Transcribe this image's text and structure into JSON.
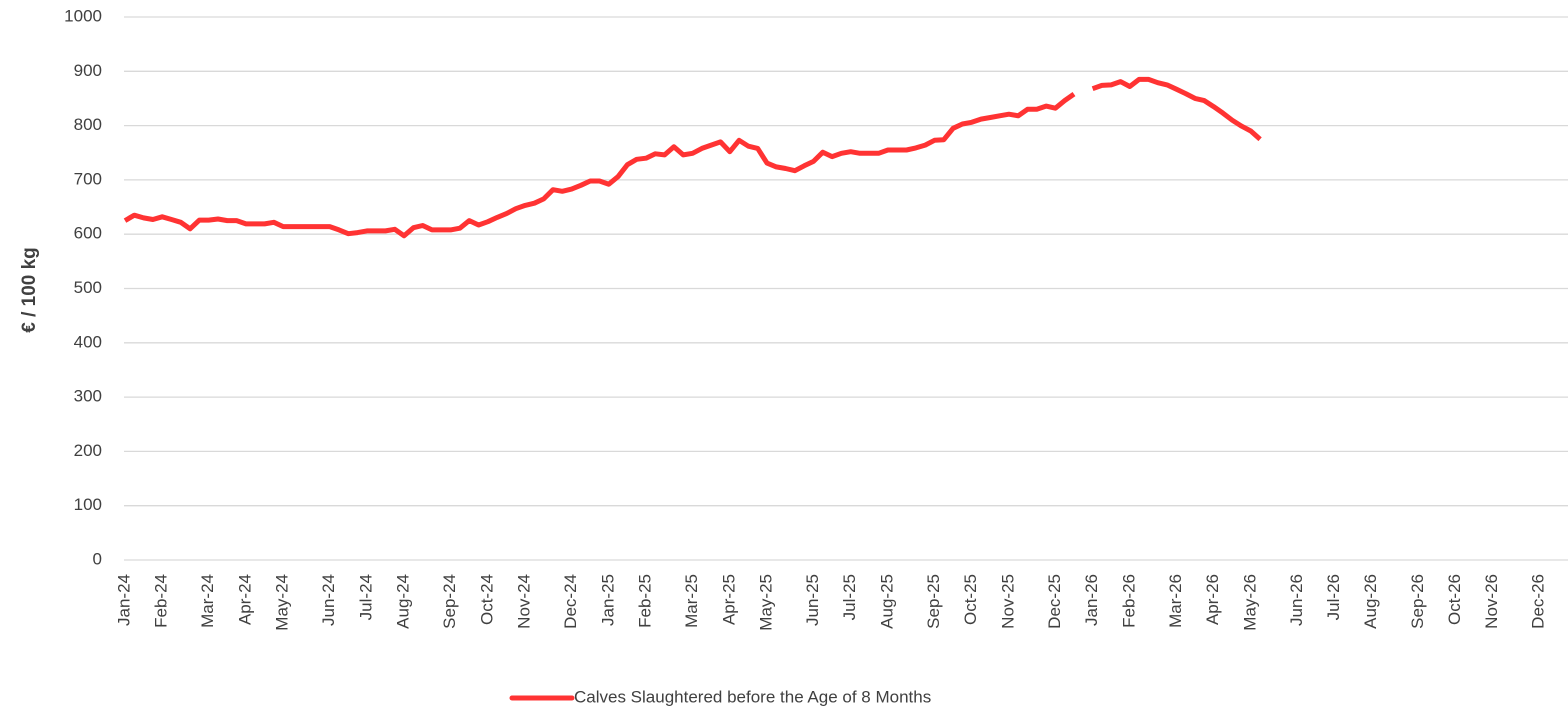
{
  "chart_data": {
    "type": "line",
    "ylabel": "€ / 100 kg",
    "categories": [
      "Jan-24",
      null,
      null,
      null,
      "Feb-24",
      null,
      null,
      null,
      null,
      "Mar-24",
      null,
      null,
      null,
      "Apr-24",
      null,
      null,
      null,
      "May-24",
      null,
      null,
      null,
      null,
      "Jun-24",
      null,
      null,
      null,
      "Jul-24",
      null,
      null,
      null,
      "Aug-24",
      null,
      null,
      null,
      null,
      "Sep-24",
      null,
      null,
      null,
      "Oct-24",
      null,
      null,
      null,
      "Nov-24",
      null,
      null,
      null,
      null,
      "Dec-24",
      null,
      null,
      null,
      "Jan-25",
      null,
      null,
      null,
      "Feb-25",
      null,
      null,
      null,
      null,
      "Mar-25",
      null,
      null,
      null,
      "Apr-25",
      null,
      null,
      null,
      "May-25",
      null,
      null,
      null,
      null,
      "Jun-25",
      null,
      null,
      null,
      "Jul-25",
      null,
      null,
      null,
      "Aug-25",
      null,
      null,
      null,
      null,
      "Sep-25",
      null,
      null,
      null,
      "Oct-25",
      null,
      null,
      null,
      "Nov-25",
      null,
      null,
      null,
      null,
      "Dec-25",
      null,
      null,
      null,
      "Jan-26",
      null,
      null,
      null,
      "Feb-26",
      null,
      null,
      null,
      null,
      "Mar-26",
      null,
      null,
      null,
      "Apr-26",
      null,
      null,
      null,
      "May-26",
      null,
      null,
      null,
      null,
      "Jun-26",
      null,
      null,
      null,
      "Jul-26",
      null,
      null,
      null,
      "Aug-26",
      null,
      null,
      null,
      null,
      "Sep-26",
      null,
      null,
      null,
      "Oct-26",
      null,
      null,
      null,
      "Nov-26",
      null,
      null,
      null,
      null,
      "Dec-26",
      null,
      null,
      null
    ],
    "series": [
      {
        "name": "Calves Slaughtered before the Age of 8 Months",
        "color": "#ff3333",
        "values": [
          625,
          635,
          630,
          627,
          632,
          627,
          622,
          610,
          626,
          626,
          628,
          625,
          625,
          619,
          619,
          619,
          622,
          614,
          614,
          614,
          614,
          614,
          614,
          608,
          601,
          603,
          606,
          606,
          606,
          609,
          597,
          612,
          616,
          608,
          608,
          608,
          611,
          625,
          617,
          623,
          631,
          638,
          647,
          653,
          657,
          665,
          682,
          679,
          683,
          690,
          698,
          698,
          692,
          706,
          728,
          738,
          740,
          748,
          746,
          761,
          746,
          749,
          758,
          764,
          770,
          752,
          773,
          762,
          758,
          731,
          724,
          721,
          717,
          726,
          734,
          751,
          743,
          749,
          752,
          749,
          749,
          749,
          755,
          755,
          755,
          759,
          764,
          773,
          774,
          795,
          803,
          806,
          812,
          815,
          818,
          821,
          818,
          830,
          830,
          836,
          832,
          846,
          858,
          null,
          868,
          874,
          875,
          881,
          872,
          885,
          885,
          879,
          875,
          867,
          859,
          850,
          846,
          835,
          823,
          810,
          799,
          790,
          775,
          null,
          null,
          null,
          null,
          null,
          null,
          null,
          null,
          null,
          null,
          null,
          null,
          null,
          null,
          null,
          null,
          null,
          null,
          null,
          null,
          null,
          null,
          null,
          null,
          null,
          null,
          null,
          null,
          null,
          null,
          null,
          null,
          null
        ]
      }
    ],
    "ylim": [
      0,
      1000
    ],
    "yticks": [
      0,
      100,
      200,
      300,
      400,
      500,
      600,
      700,
      800,
      900,
      1000
    ],
    "grid": true,
    "legend": "bottom"
  }
}
